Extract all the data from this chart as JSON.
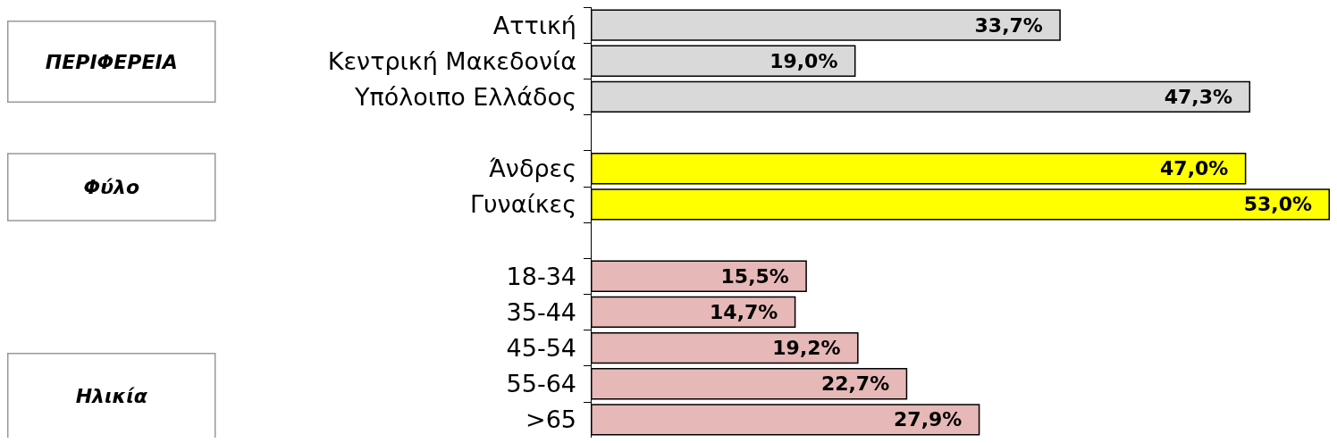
{
  "chart_data": {
    "type": "bar",
    "orientation": "horizontal",
    "categories": [
      "Αττική",
      "Κεντρική Μακεδονία",
      "Υπόλοιπο Ελλάδος",
      null,
      "Άνδρες",
      "Γυναίκες",
      null,
      "18-34",
      "35-44",
      "45-54",
      "55-64",
      ">65"
    ],
    "values": [
      33.7,
      19.0,
      47.3,
      null,
      47.0,
      53.0,
      null,
      15.5,
      14.7,
      19.2,
      22.7,
      27.9
    ],
    "colors": [
      "#d9d9d9",
      "#d9d9d9",
      "#d9d9d9",
      "#ffffff",
      "#ffff00",
      "#ffff00",
      "#ffffff",
      "#e6b8b7",
      "#e6b8b7",
      "#e6b8b7",
      "#e6b8b7",
      "#e6b8b7"
    ],
    "value_labels": [
      "33,7%",
      "19,0%",
      "47,3%",
      null,
      "47,0%",
      "53,0%",
      null,
      "15,5%",
      "14,7%",
      "19,2%",
      "22,7%",
      "27,9%"
    ],
    "annotations": [
      "ΠΕΡΙΦΕΡΕΙΑ",
      "Φύλο",
      "Ηλικία"
    ]
  }
}
